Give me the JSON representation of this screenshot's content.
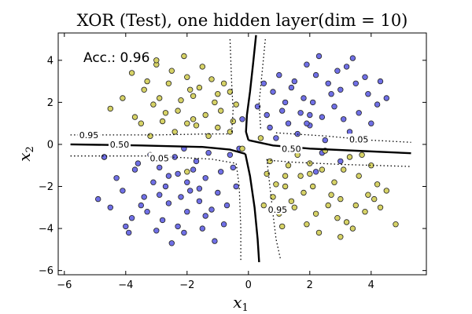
{
  "chart_data": {
    "type": "scatter",
    "title": "XOR (Test), one hidden layer(dim = 10)",
    "xlabel_main": "x",
    "xlabel_sub": "1",
    "ylabel_main": "x",
    "ylabel_sub": "2",
    "annotation": "Acc.: 0.96",
    "xlim": [
      -6.2,
      5.8
    ],
    "ylim": [
      -6.2,
      5.3
    ],
    "xticks": [
      -6,
      -4,
      -2,
      0,
      2,
      4
    ],
    "yticks": [
      -6,
      -4,
      -2,
      0,
      2,
      4
    ],
    "grid": false,
    "legend": "none",
    "colors": {
      "class_blue": "#6f6fe6",
      "class_yellow": "#d6d266",
      "marker_edge": "#222222",
      "decision_line": "#000000"
    },
    "series": [
      {
        "color": "class_blue",
        "points": [
          [
            -2.3,
            -1.4
          ],
          [
            -1.9,
            -2.2
          ],
          [
            -2.6,
            -2.8
          ],
          [
            -3.1,
            -1.8
          ],
          [
            -1.4,
            -1.6
          ],
          [
            -2.0,
            -3.2
          ],
          [
            -3.4,
            -2.5
          ],
          [
            -1.6,
            -2.7
          ],
          [
            -2.8,
            -3.6
          ],
          [
            -1.2,
            -3.1
          ],
          [
            -0.9,
            -1.3
          ],
          [
            -3.7,
            -1.2
          ],
          [
            -2.4,
            -0.6
          ],
          [
            -1.7,
            -0.8
          ],
          [
            -3.2,
            -0.5
          ],
          [
            -4.1,
            -2.2
          ],
          [
            -4.5,
            -3.0
          ],
          [
            -2.1,
            -4.2
          ],
          [
            -3.0,
            -4.1
          ],
          [
            -1.0,
            -2.3
          ],
          [
            -0.6,
            -0.5
          ],
          [
            -1.5,
            -4.0
          ],
          [
            -3.8,
            -3.5
          ],
          [
            -2.9,
            -1.1
          ],
          [
            -4.7,
            -0.6
          ],
          [
            -0.8,
            -3.8
          ],
          [
            -2.2,
            -2.5
          ],
          [
            -1.3,
            -0.4
          ],
          [
            -3.5,
            -2.9
          ],
          [
            -2.7,
            -2.0
          ],
          [
            -1.8,
            -1.2
          ],
          [
            -4.3,
            -1.6
          ],
          [
            -0.4,
            -2.0
          ],
          [
            -2.5,
            -4.7
          ],
          [
            -3.9,
            -4.2
          ],
          [
            -1.1,
            -4.6
          ],
          [
            -0.5,
            -1.1
          ],
          [
            -3.3,
            -3.2
          ],
          [
            -2.0,
            -1.8
          ],
          [
            -1.6,
            -2.1
          ],
          [
            -4.9,
            -2.6
          ],
          [
            -0.7,
            -2.9
          ],
          [
            -2.3,
            -3.9
          ],
          [
            -3.6,
            -0.9
          ],
          [
            -1.4,
            -3.4
          ],
          [
            -2.9,
            -2.4
          ],
          [
            -0.3,
            -0.2
          ],
          [
            -4.0,
            -3.9
          ],
          [
            1.1,
            1.6
          ],
          [
            1.8,
            2.2
          ],
          [
            2.4,
            1.3
          ],
          [
            3.0,
            2.6
          ],
          [
            2.0,
            0.9
          ],
          [
            1.5,
            3.0
          ],
          [
            2.8,
            1.8
          ],
          [
            3.6,
            1.5
          ],
          [
            0.8,
            2.5
          ],
          [
            2.2,
            3.3
          ],
          [
            3.3,
            0.6
          ],
          [
            1.3,
            1.0
          ],
          [
            2.6,
            2.9
          ],
          [
            3.9,
            2.4
          ],
          [
            4.2,
            1.9
          ],
          [
            0.6,
            1.4
          ],
          [
            1.9,
            3.8
          ],
          [
            3.4,
            4.1
          ],
          [
            2.5,
            0.2
          ],
          [
            1.6,
            0.5
          ],
          [
            4.5,
            2.2
          ],
          [
            0.3,
            1.8
          ],
          [
            2.9,
            3.5
          ],
          [
            1.0,
            3.3
          ],
          [
            3.8,
            3.2
          ],
          [
            2.1,
            2.0
          ],
          [
            3.1,
            1.2
          ],
          [
            1.7,
            1.5
          ],
          [
            0.9,
            0.3
          ],
          [
            2.7,
            2.4
          ],
          [
            4.0,
            1.0
          ],
          [
            1.4,
            2.7
          ],
          [
            2.3,
            4.2
          ],
          [
            3.5,
            2.9
          ],
          [
            0.5,
            2.9
          ],
          [
            1.2,
            2.0
          ],
          [
            3.2,
            3.7
          ],
          [
            2.0,
            1.4
          ],
          [
            4.3,
            3.0
          ],
          [
            0.7,
            0.8
          ],
          [
            2.4,
            -0.4
          ],
          [
            2.2,
            -1.3
          ],
          [
            3.0,
            -0.8
          ],
          [
            -0.2,
            1.2
          ],
          [
            -4.7,
            -0.6
          ],
          [
            -2.1,
            -0.2
          ],
          [
            -2.6,
            -1.5
          ],
          [
            1.9,
            1.0
          ]
        ]
      },
      {
        "color": "class_yellow",
        "points": [
          [
            -2.3,
            1.6
          ],
          [
            -1.8,
            2.3
          ],
          [
            -2.6,
            2.9
          ],
          [
            -3.1,
            1.9
          ],
          [
            -1.4,
            1.4
          ],
          [
            -2.0,
            3.2
          ],
          [
            -3.4,
            2.6
          ],
          [
            -1.6,
            2.7
          ],
          [
            -2.8,
            1.1
          ],
          [
            -1.2,
            3.1
          ],
          [
            -0.9,
            1.6
          ],
          [
            -3.7,
            1.3
          ],
          [
            -2.4,
            0.6
          ],
          [
            -1.7,
            0.9
          ],
          [
            -3.2,
            0.4
          ],
          [
            -4.1,
            2.2
          ],
          [
            -4.5,
            1.7
          ],
          [
            -2.1,
            4.2
          ],
          [
            -3.0,
            3.8
          ],
          [
            -1.0,
            2.4
          ],
          [
            -0.6,
            0.6
          ],
          [
            -1.5,
            3.7
          ],
          [
            -3.8,
            3.4
          ],
          [
            -2.9,
            2.2
          ],
          [
            -0.8,
            2.9
          ],
          [
            -2.2,
            2.1
          ],
          [
            -1.3,
            0.4
          ],
          [
            -3.5,
            1.0
          ],
          [
            -2.7,
            1.5
          ],
          [
            -1.8,
            1.2
          ],
          [
            -0.4,
            1.9
          ],
          [
            -3.0,
            4.0
          ],
          [
            -1.1,
            2.0
          ],
          [
            -0.5,
            1.1
          ],
          [
            -2.5,
            3.5
          ],
          [
            -1.9,
            2.6
          ],
          [
            -3.3,
            3.0
          ],
          [
            -2.0,
            1.0
          ],
          [
            -1.0,
            0.8
          ],
          [
            -0.6,
            2.5
          ],
          [
            1.2,
            -1.5
          ],
          [
            1.8,
            -2.3
          ],
          [
            2.4,
            -1.2
          ],
          [
            3.0,
            -2.6
          ],
          [
            2.0,
            -0.9
          ],
          [
            1.5,
            -3.0
          ],
          [
            2.8,
            -1.8
          ],
          [
            3.6,
            -1.5
          ],
          [
            0.8,
            -2.5
          ],
          [
            2.2,
            -3.3
          ],
          [
            3.3,
            -0.6
          ],
          [
            1.3,
            -1.0
          ],
          [
            2.6,
            -2.9
          ],
          [
            3.9,
            -2.4
          ],
          [
            4.2,
            -1.9
          ],
          [
            0.6,
            -1.4
          ],
          [
            1.9,
            -3.8
          ],
          [
            3.4,
            -4.0
          ],
          [
            1.6,
            -0.5
          ],
          [
            4.5,
            -2.2
          ],
          [
            0.9,
            -1.9
          ],
          [
            2.9,
            -3.5
          ],
          [
            1.0,
            -3.3
          ],
          [
            3.8,
            -3.2
          ],
          [
            2.1,
            -2.0
          ],
          [
            3.1,
            -1.2
          ],
          [
            1.7,
            -1.5
          ],
          [
            2.7,
            -2.4
          ],
          [
            4.0,
            -1.0
          ],
          [
            1.4,
            -2.7
          ],
          [
            2.3,
            -4.2
          ],
          [
            3.5,
            -2.9
          ],
          [
            0.5,
            -2.9
          ],
          [
            1.2,
            -2.0
          ],
          [
            3.2,
            -3.7
          ],
          [
            2.0,
            -1.4
          ],
          [
            4.3,
            -3.0
          ],
          [
            0.7,
            -0.8
          ],
          [
            3.7,
            -0.5
          ],
          [
            4.1,
            -2.6
          ],
          [
            2.5,
            -0.3
          ],
          [
            1.1,
            -3.9
          ],
          [
            3.0,
            -4.4
          ],
          [
            4.8,
            -3.8
          ],
          [
            0.4,
            0.3
          ],
          [
            -0.2,
            -0.2
          ],
          [
            -2.0,
            -1.3
          ]
        ]
      }
    ],
    "contours": [
      {
        "level": "0.50",
        "style": "solid",
        "paths": [
          [
            [
              -5.8,
              0.0
            ],
            [
              -3.5,
              -0.05
            ],
            [
              -1.5,
              -0.12
            ],
            [
              -0.6,
              -0.25
            ],
            [
              -0.1,
              -0.45
            ]
          ],
          [
            [
              0.25,
              5.2
            ],
            [
              0.15,
              3.8
            ],
            [
              0.05,
              2.5
            ],
            [
              -0.05,
              1.4
            ],
            [
              -0.08,
              0.6
            ],
            [
              0.0,
              0.2
            ]
          ],
          [
            [
              0.0,
              0.2
            ],
            [
              0.8,
              -0.05
            ],
            [
              2.0,
              -0.2
            ],
            [
              3.5,
              -0.3
            ],
            [
              5.3,
              -0.42
            ]
          ],
          [
            [
              -0.1,
              -0.45
            ],
            [
              0.05,
              -1.5
            ],
            [
              0.2,
              -3.0
            ],
            [
              0.3,
              -4.5
            ],
            [
              0.35,
              -5.6
            ]
          ]
        ],
        "labels": [
          {
            "text": "0.50",
            "x": -4.2,
            "y": 0.0
          },
          {
            "text": "0.50",
            "x": 1.4,
            "y": -0.2
          }
        ]
      },
      {
        "level": "0.95",
        "style": "dotted",
        "paths": [
          [
            [
              -5.8,
              0.45
            ],
            [
              -3.0,
              0.45
            ],
            [
              -1.3,
              0.5
            ],
            [
              -0.6,
              0.5
            ]
          ],
          [
            [
              -0.6,
              5.0
            ],
            [
              -0.55,
              3.0
            ],
            [
              -0.5,
              1.6
            ],
            [
              -0.55,
              0.5
            ]
          ],
          [
            [
              0.6,
              -0.7
            ],
            [
              0.7,
              -2.0
            ],
            [
              0.8,
              -3.3
            ],
            [
              0.9,
              -4.5
            ],
            [
              1.05,
              -5.5
            ]
          ]
        ],
        "labels": [
          {
            "text": "0.95",
            "x": -5.2,
            "y": 0.45
          },
          {
            "text": "0.95",
            "x": 0.95,
            "y": -3.1
          }
        ]
      },
      {
        "level": "0.05",
        "style": "dotted",
        "paths": [
          [
            [
              -5.8,
              -0.55
            ],
            [
              -3.2,
              -0.55
            ],
            [
              -1.2,
              -0.7
            ],
            [
              -0.4,
              -0.9
            ],
            [
              -0.3,
              -2.0
            ],
            [
              -0.25,
              -4.0
            ],
            [
              -0.25,
              -5.5
            ]
          ],
          [
            [
              0.55,
              5.0
            ],
            [
              0.45,
              3.5
            ],
            [
              0.35,
              2.0
            ],
            [
              0.4,
              0.7
            ]
          ],
          [
            [
              0.6,
              -0.75
            ],
            [
              1.5,
              -0.85
            ],
            [
              3.0,
              -0.95
            ],
            [
              5.3,
              -1.05
            ]
          ],
          [
            [
              0.9,
              0.55
            ],
            [
              2.5,
              0.4
            ],
            [
              4.0,
              0.2
            ],
            [
              5.3,
              0.1
            ]
          ]
        ],
        "labels": [
          {
            "text": "0.05",
            "x": -2.9,
            "y": -0.65
          },
          {
            "text": "0.05",
            "x": 3.6,
            "y": 0.25
          }
        ]
      }
    ]
  }
}
